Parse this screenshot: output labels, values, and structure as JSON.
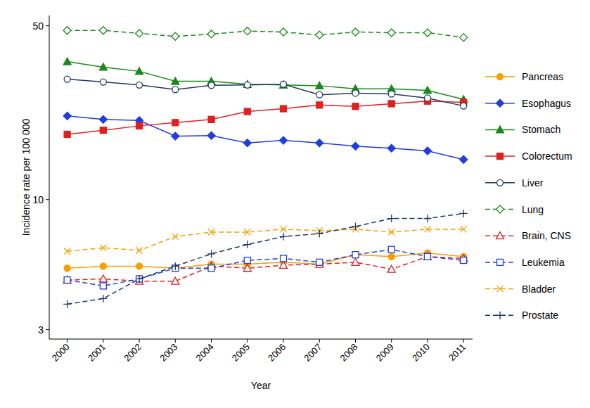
{
  "chart_data": {
    "type": "line",
    "x_label": "Year",
    "y_label": "Incidence rate per 100 000",
    "log": "y",
    "legend": "right",
    "grid": false,
    "x": [
      2000,
      2001,
      2002,
      2003,
      2004,
      2005,
      2006,
      2007,
      2008,
      2009,
      2010,
      2011
    ],
    "xlim": [
      1999.5,
      2011.25
    ],
    "xticks": [
      2000,
      2001,
      2002,
      2003,
      2004,
      2005,
      2006,
      2007,
      2008,
      2009,
      2010,
      2011
    ],
    "ylim": [
      2.75,
      55
    ],
    "yticks": [
      3,
      10,
      50
    ],
    "series": [
      {
        "name": "Pancreas",
        "color": "#f5a000",
        "marker": "circle",
        "line_style": "solid",
        "values": [
          5.3,
          5.4,
          5.4,
          5.3,
          5.5,
          5.5,
          5.6,
          5.5,
          6.0,
          5.9,
          6.1,
          5.9
        ]
      },
      {
        "name": "Esophagus",
        "color": "#1f3de0",
        "marker": "diamond",
        "line_style": "solid",
        "values": [
          21.7,
          21.0,
          20.8,
          18.0,
          18.1,
          16.9,
          17.3,
          16.9,
          16.4,
          16.1,
          15.7,
          14.5
        ]
      },
      {
        "name": "Stomach",
        "color": "#1a8a1a",
        "marker": "triangle",
        "line_style": "solid",
        "values": [
          35.9,
          34.1,
          32.8,
          29.9,
          29.9,
          29.1,
          28.9,
          28.7,
          27.9,
          27.9,
          27.5,
          25.3
        ]
      },
      {
        "name": "Colorectum",
        "color": "#e02020",
        "marker": "square",
        "line_style": "solid",
        "values": [
          18.3,
          19.0,
          19.8,
          20.4,
          21.0,
          22.6,
          23.2,
          24.0,
          23.7,
          24.3,
          24.9,
          24.6
        ]
      },
      {
        "name": "Liver",
        "color": "#1f3a5f",
        "marker": "circle-open",
        "line_style": "solid",
        "values": [
          30.5,
          29.7,
          28.9,
          27.7,
          28.8,
          28.9,
          29.1,
          26.4,
          26.8,
          26.6,
          25.6,
          23.8
        ]
      },
      {
        "name": "Lung",
        "color": "#1a8a1a",
        "marker": "diamond-open",
        "line_style": "dashed",
        "values": [
          47.9,
          47.9,
          46.6,
          45.3,
          46.3,
          47.6,
          47.2,
          45.9,
          47.2,
          46.9,
          46.9,
          44.9
        ]
      },
      {
        "name": "Brain, CNS",
        "color": "#e02020",
        "marker": "triangle-open",
        "line_style": "dashed",
        "values": [
          4.75,
          4.8,
          4.7,
          4.7,
          5.4,
          5.3,
          5.45,
          5.5,
          5.6,
          5.25,
          5.9,
          5.8
        ]
      },
      {
        "name": "Leukemia",
        "color": "#1f3de0",
        "marker": "square-open",
        "line_style": "dashed",
        "values": [
          4.75,
          4.5,
          4.8,
          5.3,
          5.3,
          5.7,
          5.8,
          5.6,
          6.0,
          6.3,
          5.9,
          5.7
        ]
      },
      {
        "name": "Bladder",
        "color": "#f5a000",
        "marker": "x",
        "line_style": "dashed",
        "values": [
          6.2,
          6.4,
          6.25,
          7.1,
          7.4,
          7.4,
          7.6,
          7.5,
          7.6,
          7.4,
          7.6,
          7.6
        ]
      },
      {
        "name": "Prostate",
        "color": "#1f3a5f",
        "marker": "plus",
        "line_style": "dashed",
        "values": [
          3.8,
          4.0,
          4.8,
          5.4,
          6.05,
          6.6,
          7.1,
          7.3,
          7.8,
          8.4,
          8.4,
          8.8
        ]
      }
    ]
  }
}
